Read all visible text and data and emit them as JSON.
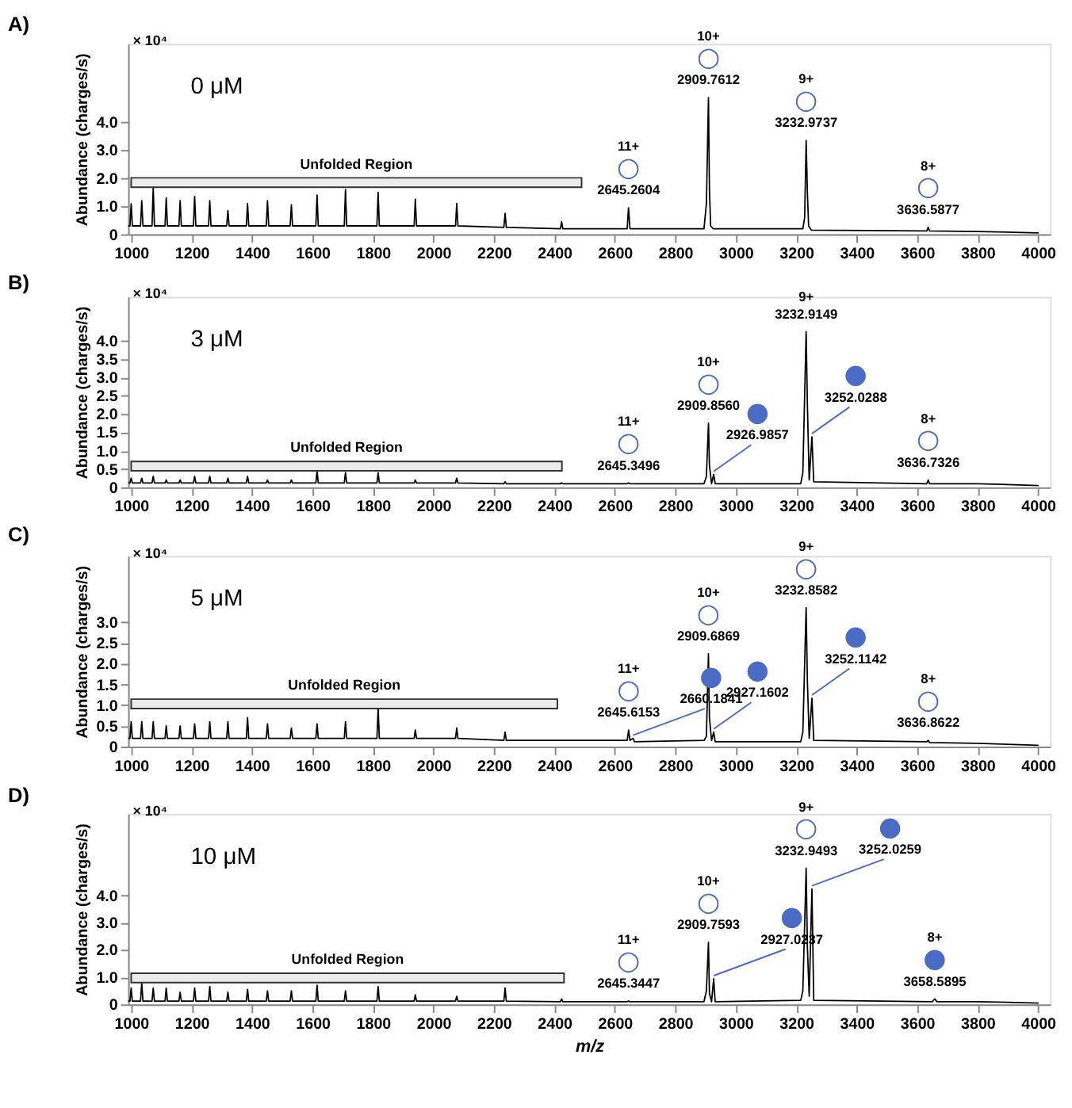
{
  "chart_data": [
    {
      "type": "line",
      "title": "A)",
      "subtitle": "0 μM",
      "ylabel": "Abundance (charges/s)",
      "xlim": [
        990,
        4040
      ],
      "ylim": [
        0,
        6.8
      ],
      "xticks": [
        1000,
        1200,
        1400,
        1600,
        1800,
        2000,
        2200,
        2400,
        2600,
        2800,
        3000,
        3200,
        3400,
        3600,
        3800,
        4000
      ],
      "yticks": [
        0,
        {
          "value": 1,
          "label": "1.0"
        },
        {
          "value": 2,
          "label": "2.0"
        },
        {
          "value": 3,
          "label": "3.0"
        },
        {
          "value": 4,
          "label": "4.0"
        }
      ],
      "series": [
        {
          "color": "#000000",
          "x": [
            990,
            996,
            1000,
            1004,
            1031,
            1035,
            1039,
            1069,
            1073,
            1077,
            1112,
            1116,
            1120,
            1158,
            1162,
            1166,
            1206,
            1210,
            1214,
            1256,
            1260,
            1264,
            1316,
            1320,
            1324,
            1381,
            1385,
            1389,
            1447,
            1451,
            1455,
            1526,
            1530,
            1534,
            1611,
            1615,
            1619,
            1705,
            1709,
            1713,
            1813,
            1817,
            1821,
            1936,
            1940,
            1944,
            2073,
            2077,
            2081,
            2233,
            2237,
            2241,
            2420,
            2424,
            2428,
            2641,
            2645.2604,
            2650,
            2895,
            2903,
            2909.7612,
            2913,
            2917,
            2925,
            3222,
            3228,
            3232.9737,
            3237,
            3241,
            3250,
            3632,
            3636.5877,
            3641,
            3800,
            4000
          ],
          "values": [
            0.3,
            0.3,
            1.09,
            0.3,
            0.3,
            1.2,
            0.3,
            0.3,
            1.68,
            0.3,
            0.3,
            1.3,
            0.3,
            0.3,
            1.2,
            0.3,
            0.3,
            1.35,
            0.3,
            0.3,
            1.2,
            0.3,
            0.3,
            0.85,
            0.3,
            0.3,
            1.1,
            0.3,
            0.3,
            1.2,
            0.3,
            0.3,
            1.05,
            0.3,
            0.3,
            1.4,
            0.3,
            0.3,
            1.6,
            0.3,
            0.3,
            1.5,
            0.3,
            0.3,
            1.25,
            0.3,
            0.3,
            1.1,
            0.3,
            0.25,
            0.75,
            0.25,
            0.2,
            0.45,
            0.2,
            0.2,
            0.95,
            0.2,
            0.2,
            1.1,
            4.88,
            1.6,
            0.3,
            0.2,
            0.2,
            0.6,
            3.35,
            1.5,
            0.3,
            0.15,
            0.12,
            0.25,
            0.12,
            0.1,
            0.05
          ]
        }
      ],
      "annotations": [
        "10+",
        {
          "text": "○",
          "x": 2909.7612,
          "y": 4.88
        },
        {
          "text": "2909.7612",
          "x": 2909.7612,
          "y": 4.88
        },
        "9+",
        {
          "text": "○",
          "x": 3232.9737,
          "y": 3.35
        },
        {
          "text": "3232.9737",
          "x": 3232.9737,
          "y": 3.35
        },
        "11+",
        {
          "text": "○",
          "x": 2645.2604,
          "y": 0.95
        },
        {
          "text": "2645.2604",
          "x": 2645.2604,
          "y": 0.95
        },
        "8+",
        {
          "text": "○",
          "x": 3636.5877,
          "y": 0.25
        },
        {
          "text": "3636.5877",
          "x": 3636.5877,
          "y": 0.25
        },
        "× 10⁴"
      ],
      "bands": [
        {
          "axis": "x",
          "from": 1000,
          "to": 2490,
          "label": "Unfolded Region",
          "color": "#333333"
        }
      ]
    },
    {
      "type": "line",
      "title": "B)",
      "subtitle": "3 μM",
      "ylabel": "Abundance (charges/s)",
      "xlim": [
        990,
        4040
      ],
      "ylim": [
        0,
        5.2
      ],
      "xticks": [
        1000,
        1200,
        1400,
        1600,
        1800,
        2000,
        2200,
        2400,
        2600,
        2800,
        3000,
        3200,
        3400,
        3600,
        3800,
        4000
      ],
      "yticks": [
        0,
        0.5,
        {
          "value": 1,
          "label": "1.0"
        },
        1.5,
        {
          "value": 2,
          "label": "2.0"
        },
        2.5,
        {
          "value": 3,
          "label": "3.0"
        },
        3.5,
        {
          "value": 4,
          "label": "4.0"
        }
      ],
      "series": [
        {
          "color": "#000000",
          "x": [
            990,
            996,
            1000,
            1004,
            1031,
            1035,
            1039,
            1069,
            1073,
            1077,
            1112,
            1116,
            1120,
            1158,
            1162,
            1166,
            1206,
            1210,
            1214,
            1256,
            1260,
            1264,
            1316,
            1320,
            1324,
            1381,
            1385,
            1389,
            1447,
            1451,
            1455,
            1526,
            1530,
            1534,
            1611,
            1615,
            1619,
            1705,
            1709,
            1713,
            1813,
            1817,
            1821,
            1936,
            1940,
            1944,
            2073,
            2077,
            2081,
            2233,
            2237,
            2241,
            2420,
            2424,
            2428,
            2641,
            2645.3496,
            2650,
            2895,
            2903,
            2909.856,
            2913,
            2920,
            2926.9857,
            2932,
            3215,
            3222,
            3232.9149,
            3237,
            3243,
            3252.0288,
            3258,
            3632,
            3636.7326,
            3641,
            3800,
            4000
          ],
          "values": [
            0.12,
            0.12,
            0.25,
            0.12,
            0.12,
            0.25,
            0.12,
            0.12,
            0.3,
            0.12,
            0.12,
            0.2,
            0.12,
            0.12,
            0.2,
            0.12,
            0.12,
            0.3,
            0.12,
            0.12,
            0.3,
            0.12,
            0.12,
            0.25,
            0.12,
            0.12,
            0.3,
            0.12,
            0.12,
            0.2,
            0.12,
            0.12,
            0.2,
            0.12,
            0.12,
            0.45,
            0.12,
            0.12,
            0.4,
            0.12,
            0.12,
            0.4,
            0.12,
            0.12,
            0.2,
            0.12,
            0.12,
            0.25,
            0.12,
            0.1,
            0.15,
            0.1,
            0.1,
            0.12,
            0.1,
            0.1,
            0.12,
            0.1,
            0.1,
            0.3,
            1.75,
            0.6,
            0.1,
            0.35,
            0.1,
            0.1,
            0.4,
            4.25,
            2.25,
            0.2,
            1.38,
            0.15,
            0.1,
            0.2,
            0.1,
            0.1,
            0.05
          ]
        }
      ],
      "annotations": [
        "9+",
        {
          "text": "3232.9149",
          "x": 3232.9149,
          "y": 4.25
        },
        "10+",
        {
          "text": "○",
          "x": 2909.856,
          "y": 1.75
        },
        {
          "text": "2909.8560",
          "x": 2909.856,
          "y": 1.75
        },
        {
          "text": "●",
          "x": 2926.9857,
          "y": 0.35
        },
        {
          "text": "2926.9857",
          "x": 2926.9857,
          "y": 0.35
        },
        {
          "text": "●",
          "x": 3252.0288,
          "y": 1.38
        },
        {
          "text": "3252.0288",
          "x": 3252.0288,
          "y": 1.38
        },
        "11+",
        {
          "text": "○",
          "x": 2645.3496,
          "y": 0.12
        },
        {
          "text": "2645.3496",
          "x": 2645.3496,
          "y": 0.12
        },
        "8+",
        {
          "text": "○",
          "x": 3636.7326,
          "y": 0.2
        },
        {
          "text": "3636.7326",
          "x": 3636.7326,
          "y": 0.2
        },
        "× 10⁴"
      ],
      "bands": [
        {
          "axis": "x",
          "from": 1000,
          "to": 2425,
          "label": "Unfolded Region",
          "color": "#333333"
        }
      ]
    },
    {
      "type": "line",
      "title": "C)",
      "subtitle": "5 μM",
      "ylabel": "Abundance (charges/s)",
      "xlim": [
        990,
        4040
      ],
      "ylim": [
        0,
        4.6
      ],
      "xticks": [
        1000,
        1200,
        1400,
        1600,
        1800,
        2000,
        2200,
        2400,
        2600,
        2800,
        3000,
        3200,
        3400,
        3600,
        3800,
        4000
      ],
      "yticks": [
        0,
        0.5,
        {
          "value": 1,
          "label": "1.0"
        },
        1.5,
        {
          "value": 2,
          "label": "2.0"
        },
        2.5,
        {
          "value": 3,
          "label": "3.0"
        }
      ],
      "series": [
        {
          "color": "#000000",
          "x": [
            990,
            996,
            1000,
            1004,
            1031,
            1035,
            1039,
            1069,
            1073,
            1077,
            1112,
            1116,
            1120,
            1158,
            1162,
            1166,
            1206,
            1210,
            1214,
            1256,
            1260,
            1264,
            1316,
            1320,
            1324,
            1381,
            1385,
            1389,
            1447,
            1451,
            1455,
            1526,
            1530,
            1534,
            1611,
            1615,
            1619,
            1705,
            1709,
            1713,
            1813,
            1817,
            1821,
            1936,
            1940,
            1944,
            2073,
            2077,
            2081,
            2233,
            2237,
            2241,
            2420,
            2424,
            2428,
            2641,
            2645.6153,
            2650,
            2660.1841,
            2665,
            2895,
            2903,
            2909.6869,
            2913,
            2920,
            2927.1602,
            2932,
            3215,
            3222,
            3232.8582,
            3237,
            3243,
            3252.1142,
            3258,
            3632,
            3636.8622,
            3641,
            3800,
            4000
          ],
          "values": [
            0.2,
            0.2,
            0.6,
            0.2,
            0.2,
            0.6,
            0.2,
            0.2,
            0.6,
            0.2,
            0.2,
            0.5,
            0.2,
            0.2,
            0.5,
            0.2,
            0.2,
            0.55,
            0.2,
            0.2,
            0.6,
            0.2,
            0.2,
            0.6,
            0.2,
            0.2,
            0.7,
            0.2,
            0.2,
            0.55,
            0.2,
            0.2,
            0.45,
            0.2,
            0.2,
            0.55,
            0.2,
            0.2,
            0.6,
            0.2,
            0.2,
            0.92,
            0.2,
            0.2,
            0.4,
            0.2,
            0.2,
            0.45,
            0.2,
            0.15,
            0.35,
            0.15,
            0.15,
            0.15,
            0.15,
            0.15,
            0.4,
            0.15,
            0.2,
            0.12,
            0.15,
            0.25,
            2.24,
            0.7,
            0.15,
            0.35,
            0.12,
            0.12,
            0.35,
            3.35,
            1.58,
            0.2,
            1.17,
            0.15,
            0.12,
            0.15,
            0.1,
            0.08,
            0.03
          ]
        }
      ],
      "annotations": [
        "9+",
        {
          "text": "○",
          "x": 3232.8582,
          "y": 3.35
        },
        {
          "text": "3232.8582",
          "x": 3232.8582,
          "y": 3.35
        },
        "10+",
        {
          "text": "○",
          "x": 2909.6869,
          "y": 2.24
        },
        {
          "text": "2909.6869",
          "x": 2909.6869,
          "y": 2.24
        },
        {
          "text": "●",
          "x": 2927.1602,
          "y": 0.35
        },
        {
          "text": "2927.1602",
          "x": 2927.1602,
          "y": 0.35
        },
        {
          "text": "●",
          "x": 3252.1142,
          "y": 1.17
        },
        {
          "text": "3252.1142",
          "x": 3252.1142,
          "y": 1.17
        },
        "11+",
        {
          "text": "○",
          "x": 2645.6153,
          "y": 0.4
        },
        {
          "text": "2645.6153",
          "x": 2645.6153,
          "y": 0.4
        },
        {
          "text": "●",
          "x": 2660.1841,
          "y": 0.2
        },
        {
          "text": "2660.1841",
          "x": 2660.1841,
          "y": 0.2
        },
        "8+",
        {
          "text": "○",
          "x": 3636.8622,
          "y": 0.15
        },
        {
          "text": "3636.8622",
          "x": 3636.8622,
          "y": 0.15
        },
        "× 10⁴"
      ],
      "bands": [
        {
          "axis": "x",
          "from": 1000,
          "to": 2410,
          "label": "Unfolded Region",
          "color": "#333333"
        }
      ]
    },
    {
      "type": "line",
      "title": "D)",
      "subtitle": "10 μM",
      "ylabel": "Abundance (charges/s)",
      "xlabel": "m/z",
      "xlim": [
        990,
        4040
      ],
      "ylim": [
        0,
        7.0
      ],
      "xticks": [
        1000,
        1200,
        1400,
        1600,
        1800,
        2000,
        2200,
        2400,
        2600,
        2800,
        3000,
        3200,
        3400,
        3600,
        3800,
        4000
      ],
      "yticks": [
        0,
        {
          "value": 1,
          "label": "1.0"
        },
        {
          "value": 2,
          "label": "2.0"
        },
        {
          "value": 3,
          "label": "3.0"
        },
        {
          "value": 4,
          "label": "4.0"
        }
      ],
      "series": [
        {
          "color": "#000000",
          "x": [
            990,
            996,
            1000,
            1004,
            1031,
            1035,
            1039,
            1069,
            1073,
            1077,
            1112,
            1116,
            1120,
            1158,
            1162,
            1166,
            1206,
            1210,
            1214,
            1256,
            1260,
            1264,
            1316,
            1320,
            1324,
            1381,
            1385,
            1389,
            1447,
            1451,
            1455,
            1526,
            1530,
            1534,
            1611,
            1615,
            1619,
            1705,
            1709,
            1713,
            1813,
            1817,
            1821,
            1936,
            1940,
            1944,
            2073,
            2077,
            2081,
            2233,
            2237,
            2241,
            2420,
            2424,
            2428,
            2641,
            2645.3447,
            2650,
            2895,
            2903,
            2909.7593,
            2913,
            2920,
            2927.0237,
            2932,
            3215,
            3222,
            3232.9493,
            3237,
            3243,
            3252.0259,
            3258,
            3650,
            3658.5895,
            3665,
            3800,
            4000
          ],
          "values": [
            0.12,
            0.12,
            0.6,
            0.12,
            0.12,
            0.8,
            0.12,
            0.12,
            0.6,
            0.12,
            0.12,
            0.6,
            0.12,
            0.12,
            0.45,
            0.12,
            0.12,
            0.6,
            0.12,
            0.12,
            0.65,
            0.12,
            0.12,
            0.45,
            0.12,
            0.12,
            0.55,
            0.12,
            0.12,
            0.5,
            0.12,
            0.12,
            0.5,
            0.12,
            0.12,
            0.7,
            0.12,
            0.12,
            0.5,
            0.12,
            0.12,
            0.65,
            0.12,
            0.12,
            0.35,
            0.12,
            0.12,
            0.3,
            0.12,
            0.12,
            0.6,
            0.12,
            0.1,
            0.2,
            0.1,
            0.1,
            0.12,
            0.1,
            0.1,
            0.5,
            2.28,
            0.4,
            0.1,
            0.94,
            0.1,
            0.15,
            0.5,
            5.0,
            2.1,
            0.3,
            4.24,
            0.15,
            0.1,
            0.2,
            0.1,
            0.1,
            0.05
          ]
        }
      ],
      "annotations": [
        "9+",
        {
          "text": "○",
          "x": 3232.9493,
          "y": 5.0
        },
        {
          "text": "3232.9493",
          "x": 3232.9493,
          "y": 5.0
        },
        {
          "text": "●",
          "x": 3252.0259,
          "y": 4.24
        },
        {
          "text": "3252.0259",
          "x": 3252.0259,
          "y": 4.24
        },
        "10+",
        {
          "text": "○",
          "x": 2909.7593,
          "y": 2.28
        },
        {
          "text": "2909.7593",
          "x": 2909.7593,
          "y": 2.28
        },
        {
          "text": "●",
          "x": 2927.0237,
          "y": 0.94
        },
        {
          "text": "2927.0237",
          "x": 2927.0237,
          "y": 0.94
        },
        "11+",
        {
          "text": "○",
          "x": 2645.3447,
          "y": 0.12
        },
        {
          "text": "2645.3447",
          "x": 2645.3447,
          "y": 0.12
        },
        "8+",
        {
          "text": "●",
          "x": 3658.5895,
          "y": 0.2
        },
        {
          "text": "3658.5895",
          "x": 3658.5895,
          "y": 0.2
        },
        "× 10⁴"
      ],
      "bands": [
        {
          "axis": "x",
          "from": 1000,
          "to": 2432,
          "label": "Unfolded Region",
          "color": "#333333"
        }
      ]
    }
  ]
}
